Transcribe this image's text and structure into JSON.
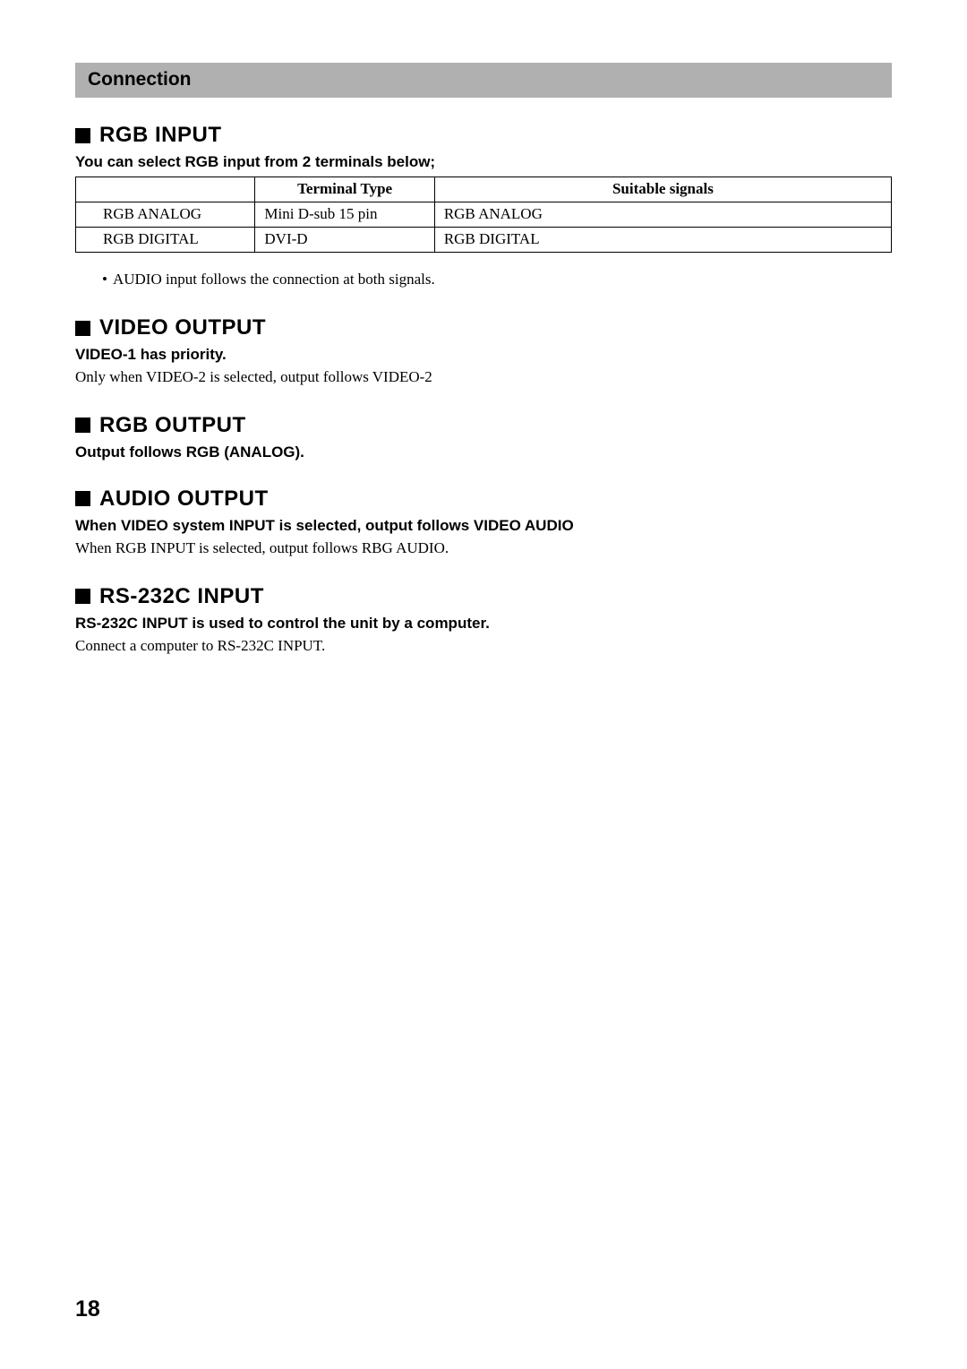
{
  "header": {
    "title": "Connection"
  },
  "sections": {
    "rgb_input": {
      "title": "RGB INPUT",
      "sub": "You can select RGB input from 2 terminals below;",
      "table": {
        "columns": [
          "",
          "Terminal Type",
          "Suitable signals"
        ],
        "rows": [
          [
            "RGB ANALOG",
            "Mini D-sub 15 pin",
            "RGB ANALOG"
          ],
          [
            "RGB DIGITAL",
            "DVI-D",
            "RGB DIGITAL"
          ]
        ]
      },
      "note_bullet": "•",
      "note": "AUDIO input follows the connection at both signals."
    },
    "video_output": {
      "title": "VIDEO OUTPUT",
      "sub": "VIDEO-1 has priority.",
      "body": "Only when VIDEO-2 is selected, output follows VIDEO-2"
    },
    "rgb_output": {
      "title": "RGB OUTPUT",
      "sub": "Output follows RGB (ANALOG)."
    },
    "audio_output": {
      "title": "AUDIO OUTPUT",
      "sub": "When VIDEO system INPUT is selected, output follows VIDEO AUDIO",
      "body": "When RGB INPUT is selected, output follows RBG AUDIO."
    },
    "rs232c": {
      "title": "RS-232C INPUT",
      "sub": "RS-232C INPUT is used to control the unit by a computer.",
      "body": "Connect a computer to RS-232C INPUT."
    }
  },
  "page_number": "18"
}
